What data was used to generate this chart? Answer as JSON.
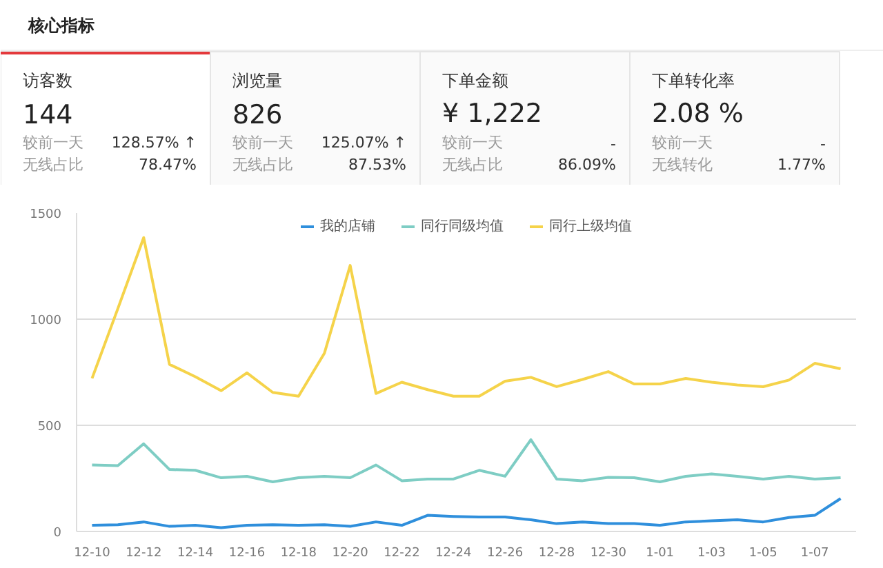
{
  "chart_data": [
    {
      "type": "other",
      "title": "核心指标",
      "annotations": [
        "访客数",
        "144",
        "较前一天",
        "128.57% ↑",
        "无线占比",
        "78.47%",
        "浏览量",
        "826",
        "较前一天",
        "125.07% ↑",
        "无线占比",
        "87.53%",
        "下单金额",
        "¥ 1,222",
        "较前一天",
        "-",
        "无线占比",
        "86.09%",
        "下单转化率",
        "2.08 %",
        "较前一天",
        "-",
        "无线转化",
        "1.77%"
      ]
    },
    {
      "type": "line",
      "categories": [
        "12-10",
        null,
        "12-12",
        null,
        "12-14",
        null,
        "12-16",
        null,
        "12-18",
        null,
        "12-20",
        null,
        "12-22",
        null,
        "12-24",
        null,
        "12-26",
        null,
        "12-28",
        null,
        "12-30",
        null,
        "1-01",
        null,
        "1-03",
        null,
        "1-05",
        null,
        "1-07",
        null
      ],
      "series": [
        {
          "name": "我的店铺",
          "color": "#2f8fdc",
          "values": [
            29,
            32,
            45,
            24,
            29,
            18,
            29,
            32,
            29,
            32,
            24,
            45,
            29,
            76,
            71,
            68,
            68,
            55,
            37,
            45,
            37,
            37,
            29,
            45,
            50,
            55,
            45,
            66,
            76,
            155
          ]
        },
        {
          "name": "同行同级均值",
          "color": "#7ecdc4",
          "values": [
            313,
            310,
            413,
            292,
            288,
            253,
            260,
            234,
            253,
            260,
            253,
            313,
            239,
            247,
            247,
            288,
            260,
            432,
            247,
            239,
            255,
            253,
            234,
            260,
            271,
            260,
            247,
            260,
            247,
            253
          ]
        },
        {
          "name": "同行上级均值",
          "color": "#f5d34a",
          "values": [
            721,
            1050,
            1384,
            787,
            729,
            663,
            747,
            655,
            637,
            839,
            1253,
            650,
            703,
            668,
            637,
            637,
            708,
            726,
            682,
            716,
            753,
            695,
            695,
            721,
            703,
            690,
            682,
            713,
            792,
            766
          ]
        }
      ],
      "ylim": [
        0,
        1500
      ],
      "yticks": [
        0,
        500,
        1000,
        1500
      ],
      "grid": "y",
      "legend": "top"
    }
  ]
}
